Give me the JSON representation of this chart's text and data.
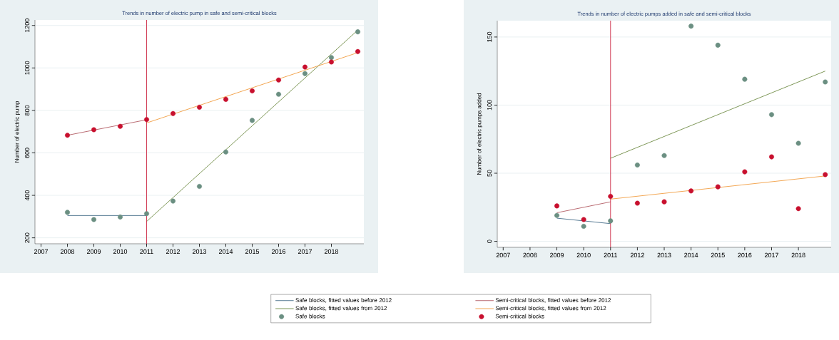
{
  "chart_data": [
    {
      "type": "scatter",
      "title": "Trends in number of electric pump in safe and semi-critical blocks",
      "ylabel": "Number of electric pump",
      "xlim": [
        2006.77,
        2019.23
      ],
      "xticks": [
        2007,
        2008,
        2009,
        2010,
        2011,
        2012,
        2013,
        2014,
        2015,
        2016,
        2017,
        2018
      ],
      "ylim": [
        172,
        1226
      ],
      "yticks": [
        200,
        400,
        600,
        800,
        1000,
        1200
      ],
      "grid": "y",
      "legend": "bottom",
      "ref_lines": [
        {
          "axis": "x",
          "value": 2011,
          "color": "#c8102e"
        }
      ],
      "series": [
        {
          "name": "Safe blocks, fitted values before 2012",
          "type": "line",
          "marker": "none",
          "line_style": "solid",
          "color": "#2f5a7a",
          "x": [
            2008,
            2011
          ],
          "values": [
            305,
            305
          ]
        },
        {
          "name": "Semi-critical blocks, fitted values before 2012",
          "type": "line",
          "marker": "none",
          "line_style": "solid",
          "color": "#a8464f",
          "x": [
            2008,
            2011
          ],
          "values": [
            683,
            756
          ]
        },
        {
          "name": "Safe blocks, fitted values from 2012",
          "type": "line",
          "marker": "none",
          "line_style": "solid",
          "color": "#5e7d2f",
          "x": [
            2011,
            2019
          ],
          "values": [
            277,
            1178
          ]
        },
        {
          "name": "Semi-critical blocks, fitted values from 2012",
          "type": "line",
          "marker": "none",
          "line_style": "solid",
          "color": "#f0922b",
          "x": [
            2011,
            2019
          ],
          "values": [
            741,
            1072
          ]
        },
        {
          "name": "Safe blocks",
          "marker": "circle",
          "color": "#6b8f82",
          "x": [
            2008,
            2009,
            2010,
            2011,
            2012,
            2013,
            2014,
            2015,
            2016,
            2017,
            2018,
            2019
          ],
          "values": [
            320,
            286,
            298,
            314,
            373,
            442,
            604,
            753,
            876,
            973,
            1049,
            1170
          ]
        },
        {
          "name": "Semi-critical blocks",
          "marker": "circle",
          "color": "#c8102e",
          "x": [
            2008,
            2009,
            2010,
            2011,
            2012,
            2013,
            2014,
            2015,
            2016,
            2017,
            2018,
            2019
          ],
          "values": [
            683,
            709,
            725,
            757,
            785,
            815,
            852,
            892,
            943,
            1004,
            1028,
            1077
          ]
        }
      ]
    },
    {
      "type": "scatter",
      "title": "Trends in number of electric pumps added in safe and semi-critical blocks",
      "ylabel": "Number of electric pumps added",
      "xlim": [
        2006.78,
        2019.22
      ],
      "xticks": [
        2007,
        2008,
        2009,
        2010,
        2011,
        2012,
        2013,
        2014,
        2015,
        2016,
        2017,
        2018
      ],
      "ylim": [
        -4.4,
        162
      ],
      "yticks": [
        0,
        50,
        100,
        150
      ],
      "grid": "y",
      "ref_lines": [
        {
          "axis": "x",
          "value": 2011,
          "color": "#c8102e"
        }
      ],
      "series": [
        {
          "type": "line",
          "marker": "none",
          "line_style": "solid",
          "color": "#2f5a7a",
          "x": [
            2009,
            2011
          ],
          "values": [
            17,
            13
          ]
        },
        {
          "type": "line",
          "marker": "none",
          "line_style": "solid",
          "color": "#a8464f",
          "x": [
            2009,
            2011
          ],
          "values": [
            21,
            29
          ]
        },
        {
          "type": "line",
          "marker": "none",
          "line_style": "solid",
          "color": "#5e7d2f",
          "x": [
            2011,
            2019
          ],
          "values": [
            61,
            125
          ]
        },
        {
          "type": "line",
          "marker": "none",
          "line_style": "solid",
          "color": "#f0922b",
          "x": [
            2011,
            2019
          ],
          "values": [
            31,
            48
          ]
        },
        {
          "marker": "circle",
          "color": "#6b8f82",
          "x": [
            2009,
            2010,
            2011,
            2012,
            2013,
            2014,
            2015,
            2016,
            2017,
            2018,
            2019
          ],
          "values": [
            19,
            11,
            15,
            56,
            63,
            158,
            144,
            119,
            93,
            72,
            117
          ]
        },
        {
          "marker": "circle",
          "color": "#c8102e",
          "x": [
            2009,
            2010,
            2011,
            2012,
            2013,
            2014,
            2015,
            2016,
            2017,
            2018,
            2019
          ],
          "values": [
            26,
            16,
            33,
            28,
            29,
            37,
            40,
            51,
            62,
            24,
            49
          ]
        }
      ]
    }
  ]
}
